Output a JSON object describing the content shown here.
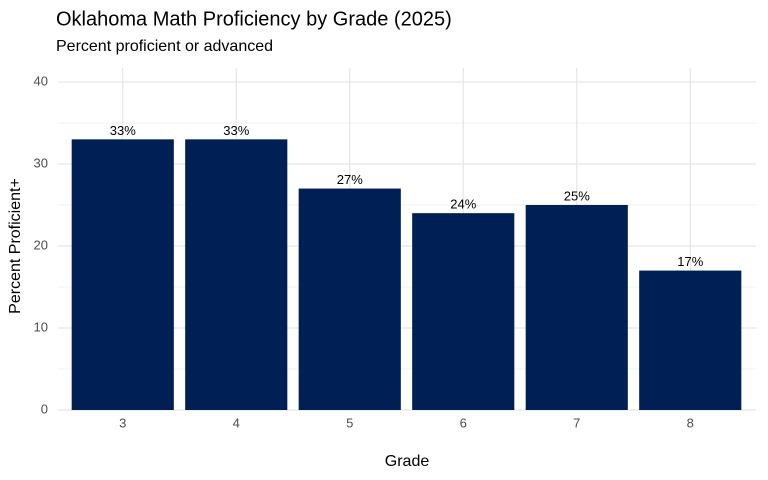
{
  "chart_data": {
    "type": "bar",
    "title": "Oklahoma Math Proficiency by Grade (2025)",
    "subtitle": "Percent proficient or advanced",
    "x_label": "Grade",
    "y_label": "Percent Proficient+",
    "categories": [
      "3",
      "4",
      "5",
      "6",
      "7",
      "8"
    ],
    "values": [
      33,
      33,
      27,
      24,
      25,
      17
    ],
    "value_labels": [
      "33%",
      "33%",
      "27%",
      "24%",
      "25%",
      "17%"
    ],
    "color": "#001f54",
    "ylim": [
      0,
      41.7
    ],
    "yticks": [
      0,
      10,
      20,
      30,
      40
    ],
    "yminorticks": [
      5,
      15,
      25,
      35
    ],
    "grid": true
  }
}
